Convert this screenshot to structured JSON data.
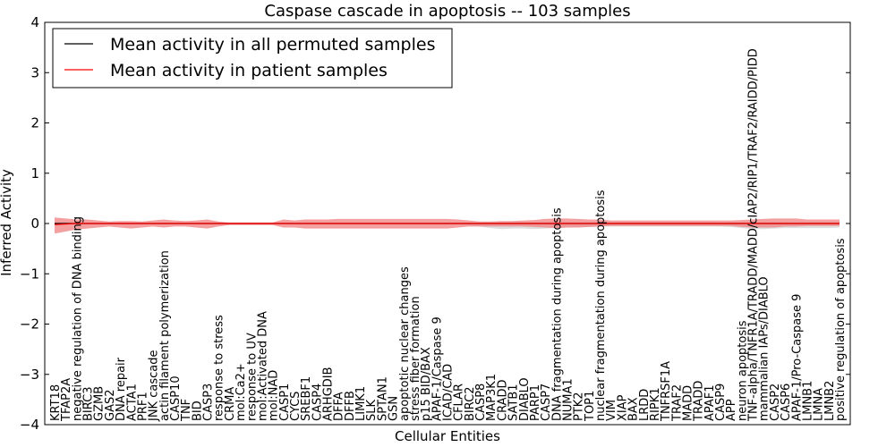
{
  "chart_data": {
    "type": "line",
    "title": "Caspase cascade in apoptosis -- 103 samples",
    "xlabel": "Cellular Entities",
    "ylabel": "Inferred Activity",
    "ylim": [
      -4,
      4
    ],
    "yticks": [
      "−4",
      "−3",
      "−2",
      "−1",
      "0",
      "1",
      "2",
      "3",
      "4"
    ],
    "legend_position": "top-left",
    "categories": [
      "KRT18",
      "TFAP2A",
      "negative regulation of DNA binding",
      "BIRC3",
      "GZMB",
      "GAS2",
      "DNA repair",
      "ACTA1",
      "PRF1",
      "JNK cascade",
      "actin filament polymerization",
      "CASP10",
      "TNF",
      "BID",
      "CASP3",
      "response to stress",
      "CRMA",
      "mol:Ca2+",
      "response to UV",
      "mol:Activated DNA",
      "mol:NAD",
      "CASP1",
      "CYCS",
      "SREBF1",
      "CASP4",
      "ARHGDIB",
      "DFFA",
      "DFFB",
      "LIMK1",
      "SLK",
      "SPTAN1",
      "GSN",
      "apoptotic nuclear changes",
      "stress fiber formation",
      "p15 BID/BAX",
      "APAF-1/Caspase 9",
      "ICAD/CAD",
      "CFLAR",
      "BIRC2",
      "CASP8",
      "MAP3K1",
      "CRADD",
      "SATB1",
      "DIABLO",
      "PARP1",
      "CASP7",
      "DNA fragmentation during apoptosis",
      "NUMA1",
      "PTK2",
      "TOP1",
      "nuclear fragmentation during apoptosis",
      "VIM",
      "XIAP",
      "BAX",
      "LRDD",
      "RIPK1",
      "TNFRSF1A",
      "TRAF2",
      "MADD",
      "TRADD",
      "APAF1",
      "CASP9",
      "APP",
      "neuron apoptosis",
      "TNF-alpha/TNFR1A/TRADD/MADD/cIAP2/RIP1/TRAF2/RAIDD/PIDD",
      "mammalian IAPs/DIABLO",
      "CASP2",
      "CASP6",
      "APAF-1/Pro-Caspase 9",
      "LMNB1",
      "LMNA",
      "LMNB2",
      "positive regulation of apoptosis"
    ],
    "series": [
      {
        "name": "Mean activity in all permuted samples",
        "color": "#000000",
        "band_color": "#c8c8c8",
        "values": [
          0,
          0,
          0,
          0,
          0,
          0,
          0,
          0,
          0,
          0,
          0,
          0,
          0,
          0,
          0,
          0,
          0,
          0,
          0,
          0,
          0,
          0,
          0,
          0,
          0,
          0,
          0,
          0,
          0,
          0,
          0,
          0,
          0,
          0,
          0,
          0,
          0,
          0,
          0,
          0,
          0,
          0,
          0,
          0,
          0,
          0,
          0,
          0,
          0,
          0,
          0,
          0,
          0,
          0,
          0,
          0,
          0,
          0,
          0,
          0,
          0,
          0,
          0,
          0,
          0,
          0,
          0,
          0,
          0,
          0,
          0,
          0,
          0
        ],
        "band_upper": [
          0.02,
          0.02,
          0.02,
          0.02,
          0.02,
          0.02,
          0.02,
          0.02,
          0.02,
          0.02,
          0.02,
          0.02,
          0.02,
          0.02,
          0.02,
          0.02,
          0.02,
          0.02,
          0.02,
          0.02,
          0.02,
          0.02,
          0.02,
          0.02,
          0.02,
          0.02,
          0.02,
          0.02,
          0.02,
          0.02,
          0.02,
          0.02,
          0.02,
          0.02,
          0.02,
          0.02,
          0.02,
          0.02,
          0.02,
          0.02,
          0.02,
          0.03,
          0.03,
          0.03,
          0.03,
          0.03,
          0.03,
          0.03,
          0.03,
          0.03,
          0.03,
          0.03,
          0.03,
          0.03,
          0.03,
          0.03,
          0.03,
          0.03,
          0.03,
          0.03,
          0.03,
          0.03,
          0.03,
          0.03,
          0.03,
          0.03,
          0.03,
          0.03,
          0.03,
          0.03,
          0.03,
          0.03,
          0.03
        ],
        "band_lower": [
          -0.02,
          -0.02,
          -0.02,
          -0.02,
          -0.02,
          -0.02,
          -0.02,
          -0.02,
          -0.02,
          -0.02,
          -0.02,
          -0.02,
          -0.02,
          -0.02,
          -0.02,
          -0.02,
          -0.02,
          -0.02,
          -0.02,
          -0.02,
          -0.02,
          -0.02,
          -0.02,
          -0.02,
          -0.02,
          -0.02,
          -0.02,
          -0.02,
          -0.02,
          -0.02,
          -0.02,
          -0.02,
          -0.02,
          -0.02,
          -0.02,
          -0.02,
          -0.02,
          -0.02,
          -0.04,
          -0.06,
          -0.09,
          -0.11,
          -0.1,
          -0.1,
          -0.11,
          -0.1,
          -0.09,
          -0.08,
          -0.08,
          -0.07,
          -0.06,
          -0.06,
          -0.06,
          -0.06,
          -0.06,
          -0.06,
          -0.06,
          -0.06,
          -0.06,
          -0.06,
          -0.06,
          -0.06,
          -0.07,
          -0.09,
          -0.11,
          -0.11,
          -0.1,
          -0.09,
          -0.09,
          -0.09,
          -0.09,
          -0.09,
          -0.08
        ]
      },
      {
        "name": "Mean activity in patient samples",
        "color": "#ff0000",
        "band_color": "#f08080",
        "values": [
          -0.02,
          -0.01,
          0,
          0,
          0,
          0,
          0,
          0,
          0,
          0,
          0,
          0,
          0,
          0,
          0,
          0,
          0,
          0,
          0,
          0,
          0,
          0,
          0,
          0,
          0,
          0,
          0,
          0,
          0,
          0,
          0,
          0,
          0,
          0,
          0,
          0,
          0,
          0,
          0,
          0,
          0,
          0,
          0,
          0,
          0,
          0,
          0,
          0,
          0,
          0,
          0,
          0,
          0,
          0,
          0,
          0,
          0,
          0,
          0,
          0,
          0,
          0,
          0,
          0,
          0,
          0,
          0,
          0,
          0,
          0,
          0,
          0,
          0
        ],
        "band_upper": [
          0.12,
          0.1,
          0.08,
          0.08,
          0.06,
          0.04,
          0.05,
          0.05,
          0.04,
          0.06,
          0.08,
          0.06,
          0.05,
          0.06,
          0.08,
          0.04,
          0.02,
          0.02,
          0.02,
          0.02,
          0.02,
          0.08,
          0.06,
          0.08,
          0.08,
          0.08,
          0.09,
          0.09,
          0.09,
          0.09,
          0.09,
          0.09,
          0.09,
          0.09,
          0.09,
          0.09,
          0.09,
          0.08,
          0.06,
          0.04,
          0.04,
          0.05,
          0.05,
          0.06,
          0.07,
          0.09,
          0.1,
          0.1,
          0.09,
          0.08,
          0.08,
          0.06,
          0.06,
          0.06,
          0.06,
          0.06,
          0.06,
          0.06,
          0.06,
          0.06,
          0.06,
          0.06,
          0.06,
          0.07,
          0.08,
          0.09,
          0.1,
          0.1,
          0.1,
          0.08,
          0.08,
          0.08,
          0.08
        ],
        "band_lower": [
          -0.2,
          -0.16,
          -0.12,
          -0.1,
          -0.08,
          -0.06,
          -0.08,
          -0.1,
          -0.08,
          -0.06,
          -0.08,
          -0.06,
          -0.06,
          -0.08,
          -0.1,
          -0.06,
          -0.03,
          -0.03,
          -0.03,
          -0.03,
          -0.03,
          -0.08,
          -0.08,
          -0.1,
          -0.1,
          -0.1,
          -0.1,
          -0.1,
          -0.1,
          -0.1,
          -0.1,
          -0.1,
          -0.1,
          -0.1,
          -0.1,
          -0.1,
          -0.1,
          -0.08,
          -0.06,
          -0.06,
          -0.06,
          -0.06,
          -0.06,
          -0.06,
          -0.07,
          -0.08,
          -0.09,
          -0.08,
          -0.08,
          -0.07,
          -0.06,
          -0.05,
          -0.05,
          -0.05,
          -0.05,
          -0.05,
          -0.05,
          -0.05,
          -0.05,
          -0.05,
          -0.05,
          -0.05,
          -0.05,
          -0.07,
          -0.08,
          -0.08,
          -0.08,
          -0.06,
          -0.06,
          -0.05,
          -0.05,
          -0.05,
          -0.05
        ]
      }
    ]
  }
}
